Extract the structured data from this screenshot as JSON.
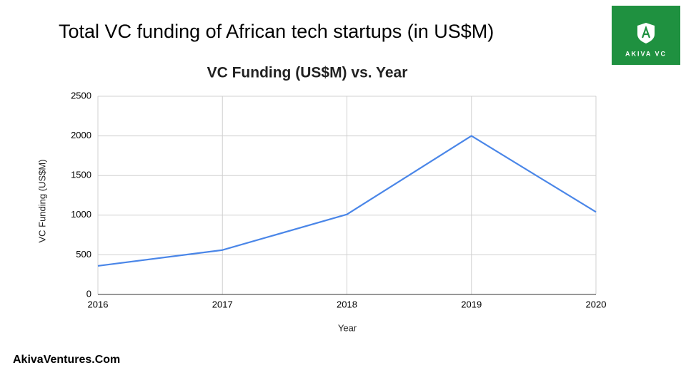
{
  "slide": {
    "title": "Total VC funding of African tech startups (in US$M)",
    "logo": "AKIVA VC",
    "footer": "AkivaVentures.Com"
  },
  "chart_data": {
    "type": "line",
    "title": "VC Funding (US$M) vs. Year",
    "x_label": "Year",
    "y_label": "VC Funding (US$M)",
    "x": [
      2016,
      2017,
      2018,
      2019,
      2020
    ],
    "values": [
      360,
      560,
      1010,
      2000,
      1040
    ],
    "color": "#4a86e8",
    "xlim": [
      2016,
      2020
    ],
    "xticks": [
      2016,
      2017,
      2018,
      2019,
      2020
    ],
    "ylim": [
      0,
      2500
    ],
    "yticks": [
      0,
      500,
      1000,
      1500,
      2000,
      2500
    ],
    "grid": true
  }
}
